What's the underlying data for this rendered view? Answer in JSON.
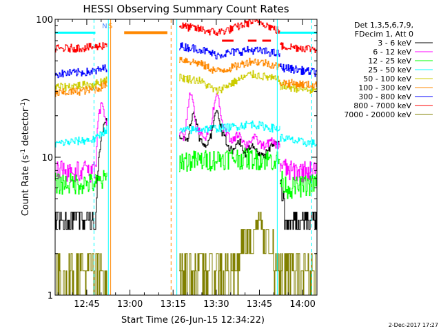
{
  "chart_data": {
    "type": "line",
    "title": "HESSI Observing Summary Count Rates",
    "xlabel": "Start Time (26-Jun-15 12:34:22)",
    "ylabel_main": "Count Rate (s",
    "ylabel_sup": "-1",
    "ylabel_rest": " detector",
    "ylabel_close": ")",
    "footer_date": "2-Dec-2017 17:27",
    "y_scale": "log",
    "ylim": [
      1,
      100
    ],
    "xlim_minutes": [
      34,
      125
    ],
    "x_ticks": [
      {
        "m": 45,
        "label": "12:45"
      },
      {
        "m": 60,
        "label": "13:00"
      },
      {
        "m": 75,
        "label": "13:15"
      },
      {
        "m": 90,
        "label": "13:30"
      },
      {
        "m": 105,
        "label": "13:45"
      },
      {
        "m": 120,
        "label": "14:00"
      }
    ],
    "y_ticks": [
      {
        "v": 1,
        "label": "1"
      },
      {
        "v": 10,
        "label": "10"
      },
      {
        "v": 100,
        "label": "100"
      }
    ],
    "legend": {
      "header": [
        "Det 1,3,5,6,7,9,",
        "FDecim 1, Att 0"
      ],
      "placement": "outside-right"
    },
    "series": [
      {
        "name": "3 - 6 keV",
        "color": "#000000",
        "segments": [
          {
            "start": 34,
            "end": 48,
            "points": [
              [
                34,
                3.5
              ],
              [
                48,
                3.5
              ]
            ]
          },
          {
            "start": 48,
            "end": 52,
            "points": [
              [
                48,
                3.5
              ],
              [
                49,
                10
              ],
              [
                50,
                14
              ],
              [
                51,
                18
              ],
              [
                52,
                18
              ]
            ]
          },
          {
            "start": 77,
            "end": 112,
            "points": [
              [
                77,
                14
              ],
              [
                80,
                13
              ],
              [
                82,
                22
              ],
              [
                84,
                14
              ],
              [
                86,
                12
              ],
              [
                88,
                14
              ],
              [
                90,
                22
              ],
              [
                92,
                15
              ],
              [
                94,
                12
              ],
              [
                96,
                11
              ],
              [
                98,
                13
              ],
              [
                100,
                10.5
              ],
              [
                102,
                12
              ],
              [
                104,
                11
              ],
              [
                106,
                10
              ],
              [
                108,
                11
              ],
              [
                110,
                13
              ],
              [
                112,
                12
              ]
            ]
          },
          {
            "start": 112,
            "end": 125,
            "points": [
              [
                112,
                7
              ],
              [
                114,
                4
              ],
              [
                118,
                3.5
              ],
              [
                125,
                3.5
              ]
            ]
          }
        ]
      },
      {
        "name": "6 - 12 keV",
        "color": "#ff00ff",
        "segments": [
          {
            "start": 34,
            "end": 48,
            "points": [
              [
                34,
                8
              ],
              [
                48,
                8
              ]
            ]
          },
          {
            "start": 48,
            "end": 52,
            "points": [
              [
                48,
                8
              ],
              [
                49,
                20
              ],
              [
                50,
                24
              ],
              [
                51,
                20
              ],
              [
                52,
                18
              ]
            ]
          },
          {
            "start": 77,
            "end": 112,
            "points": [
              [
                77,
                15
              ],
              [
                79,
                14
              ],
              [
                81,
                30
              ],
              [
                83,
                16
              ],
              [
                86,
                14
              ],
              [
                88,
                16
              ],
              [
                90,
                30
              ],
              [
                92,
                17
              ],
              [
                95,
                13
              ],
              [
                98,
                15
              ],
              [
                100,
                12
              ],
              [
                103,
                14
              ],
              [
                106,
                12
              ],
              [
                109,
                13
              ],
              [
                112,
                12
              ]
            ]
          },
          {
            "start": 112,
            "end": 125,
            "points": [
              [
                112,
                9
              ],
              [
                115,
                8
              ],
              [
                125,
                8
              ]
            ]
          }
        ]
      },
      {
        "name": "12 - 25 keV",
        "color": "#00ff00",
        "segments": [
          {
            "start": 34,
            "end": 48,
            "points": [
              [
                34,
                6.5
              ],
              [
                48,
                6.5
              ]
            ]
          },
          {
            "start": 48,
            "end": 52,
            "points": [
              [
                48,
                6.5
              ],
              [
                52,
                7
              ]
            ]
          },
          {
            "start": 77,
            "end": 112,
            "points": [
              [
                77,
                9.5
              ],
              [
                85,
                9.5
              ],
              [
                95,
                10
              ],
              [
                105,
                9.8
              ],
              [
                112,
                9.5
              ]
            ]
          },
          {
            "start": 112,
            "end": 125,
            "points": [
              [
                112,
                7
              ],
              [
                115,
                6
              ],
              [
                125,
                6.5
              ]
            ]
          }
        ]
      },
      {
        "name": "25 - 50 keV",
        "color": "#00ffff",
        "segments": [
          {
            "start": 34,
            "end": 48,
            "points": [
              [
                34,
                12.5
              ],
              [
                40,
                13
              ],
              [
                48,
                13.5
              ]
            ]
          },
          {
            "start": 48,
            "end": 52,
            "points": [
              [
                48,
                13.5
              ],
              [
                50,
                15
              ],
              [
                52,
                16
              ]
            ]
          },
          {
            "start": 77,
            "end": 112,
            "points": [
              [
                77,
                15.5
              ],
              [
                85,
                16
              ],
              [
                95,
                16.5
              ],
              [
                102,
                17.5
              ],
              [
                108,
                16.5
              ],
              [
                112,
                16
              ]
            ]
          },
          {
            "start": 112,
            "end": 125,
            "points": [
              [
                112,
                14
              ],
              [
                118,
                13
              ],
              [
                125,
                12.5
              ]
            ]
          }
        ]
      },
      {
        "name": "50 - 100 keV",
        "color": "#cccc00",
        "segments": [
          {
            "start": 34,
            "end": 48,
            "points": [
              [
                34,
                32
              ],
              [
                48,
                34
              ]
            ]
          },
          {
            "start": 48,
            "end": 52,
            "points": [
              [
                48,
                34
              ],
              [
                52,
                37
              ]
            ]
          },
          {
            "start": 77,
            "end": 112,
            "points": [
              [
                77,
                38
              ],
              [
                84,
                36
              ],
              [
                90,
                30
              ],
              [
                96,
                35
              ],
              [
                102,
                40
              ],
              [
                108,
                38
              ],
              [
                112,
                36
              ]
            ]
          },
          {
            "start": 112,
            "end": 125,
            "points": [
              [
                112,
                33
              ],
              [
                125,
                30
              ]
            ]
          }
        ]
      },
      {
        "name": "100 - 300 keV",
        "color": "#ff8800",
        "segments": [
          {
            "start": 34,
            "end": 48,
            "points": [
              [
                34,
                29
              ],
              [
                48,
                31
              ]
            ]
          },
          {
            "start": 48,
            "end": 52,
            "points": [
              [
                48,
                31
              ],
              [
                52,
                34
              ]
            ]
          },
          {
            "start": 77,
            "end": 112,
            "points": [
              [
                77,
                52
              ],
              [
                84,
                48
              ],
              [
                90,
                42
              ],
              [
                96,
                45
              ],
              [
                102,
                50
              ],
              [
                108,
                48
              ],
              [
                112,
                45
              ]
            ]
          },
          {
            "start": 112,
            "end": 125,
            "points": [
              [
                112,
                35
              ],
              [
                125,
                33
              ]
            ]
          }
        ]
      },
      {
        "name": "300 - 800 keV",
        "color": "#0000ff",
        "segments": [
          {
            "start": 34,
            "end": 48,
            "points": [
              [
                34,
                40
              ],
              [
                48,
                42
              ]
            ]
          },
          {
            "start": 48,
            "end": 52,
            "points": [
              [
                48,
                42
              ],
              [
                52,
                45
              ]
            ]
          },
          {
            "start": 77,
            "end": 112,
            "points": [
              [
                77,
                64
              ],
              [
                84,
                61
              ],
              [
                90,
                55
              ],
              [
                96,
                58
              ],
              [
                102,
                60
              ],
              [
                108,
                58
              ],
              [
                112,
                56
              ]
            ]
          },
          {
            "start": 112,
            "end": 125,
            "points": [
              [
                112,
                45
              ],
              [
                125,
                41
              ]
            ]
          }
        ]
      },
      {
        "name": "800 - 7000 keV",
        "color": "#ff0000",
        "segments": [
          {
            "start": 34,
            "end": 48,
            "points": [
              [
                34,
                61
              ],
              [
                48,
                63
              ]
            ]
          },
          {
            "start": 48,
            "end": 52,
            "points": [
              [
                48,
                63
              ],
              [
                52,
                66
              ]
            ]
          },
          {
            "start": 77,
            "end": 112,
            "points": [
              [
                77,
                90
              ],
              [
                84,
                85
              ],
              [
                90,
                80
              ],
              [
                96,
                86
              ],
              [
                102,
                96
              ],
              [
                106,
                95
              ],
              [
                110,
                85
              ],
              [
                112,
                82
              ]
            ]
          },
          {
            "start": 112,
            "end": 125,
            "points": [
              [
                112,
                64
              ],
              [
                125,
                61
              ]
            ]
          }
        ]
      },
      {
        "name": "7000 - 20000 keV",
        "color": "#808000",
        "segments": [
          {
            "start": 34,
            "end": 48,
            "points": [
              [
                34,
                1.5
              ],
              [
                48,
                1.5
              ]
            ]
          },
          {
            "start": 48,
            "end": 52,
            "points": [
              [
                48,
                1.5
              ],
              [
                52,
                1.7
              ]
            ]
          },
          {
            "start": 77,
            "end": 112,
            "points": [
              [
                77,
                1.6
              ],
              [
                95,
                1.8
              ],
              [
                100,
                2.4
              ],
              [
                105,
                3.3
              ],
              [
                108,
                2.6
              ],
              [
                112,
                1.7
              ]
            ]
          },
          {
            "start": 112,
            "end": 125,
            "points": [
              [
                112,
                1.5
              ],
              [
                125,
                1.5
              ]
            ]
          }
        ]
      }
    ],
    "overlays": {
      "cyan_line": {
        "color": "#00ffff",
        "value": 80,
        "segments": [
          [
            34,
            48
          ],
          [
            112,
            125
          ]
        ]
      },
      "orange_bar": {
        "color": "#ff8800",
        "value": 80,
        "range": [
          58,
          73
        ]
      },
      "red_tick_value": 70,
      "red_ticks": [
        [
          92,
          96
        ],
        [
          101,
          104
        ],
        [
          106,
          109
        ]
      ],
      "vlines": [
        {
          "m": 47.5,
          "color": "#00ffff",
          "style": "dashed"
        },
        {
          "m": 52.5,
          "color": "#00ffff",
          "style": "solid"
        },
        {
          "m": 53.3,
          "color": "#ff8800",
          "style": "solid"
        },
        {
          "m": 74.3,
          "color": "#ff8800",
          "style": "dashed"
        },
        {
          "m": 76.3,
          "color": "#00ffff",
          "style": "solid"
        },
        {
          "m": 111.2,
          "color": "#00ffff",
          "style": "solid"
        },
        {
          "m": 123.2,
          "color": "#00ffff",
          "style": "dashed"
        }
      ],
      "markers": [
        {
          "m": 51.2,
          "text": "N",
          "color": "#4488ff"
        },
        {
          "m": 53.2,
          "text": "S",
          "color": "#ff8800"
        }
      ]
    }
  }
}
